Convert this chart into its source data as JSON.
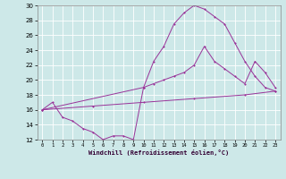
{
  "xlabel": "Windchill (Refroidissement éolien,°C)",
  "bg_color": "#cde8e8",
  "line_color": "#993399",
  "xlim": [
    -0.5,
    23.5
  ],
  "ylim": [
    12,
    30
  ],
  "xticks": [
    0,
    1,
    2,
    3,
    4,
    5,
    6,
    7,
    8,
    9,
    10,
    11,
    12,
    13,
    14,
    15,
    16,
    17,
    18,
    19,
    20,
    21,
    22,
    23
  ],
  "yticks": [
    12,
    14,
    16,
    18,
    20,
    22,
    24,
    26,
    28,
    30
  ],
  "line1_x": [
    0,
    1,
    2,
    3,
    4,
    5,
    6,
    7,
    8,
    9,
    10,
    11,
    12,
    13,
    14,
    15,
    16,
    17,
    18,
    19,
    20,
    21,
    22,
    23
  ],
  "line1_y": [
    16.0,
    17.0,
    15.0,
    14.5,
    13.5,
    13.0,
    12.0,
    12.5,
    12.5,
    12.0,
    19.0,
    22.5,
    24.5,
    27.5,
    29.0,
    30.0,
    29.5,
    28.5,
    27.5,
    25.0,
    22.5,
    20.5,
    19.0,
    18.5
  ],
  "line2_x": [
    0,
    10,
    11,
    12,
    13,
    14,
    15,
    16,
    17,
    18,
    19,
    20,
    21,
    22,
    23
  ],
  "line2_y": [
    16.0,
    19.0,
    19.5,
    20.0,
    20.5,
    21.0,
    22.0,
    24.5,
    22.5,
    21.5,
    20.5,
    19.5,
    22.5,
    21.0,
    19.0
  ],
  "line3_x": [
    0,
    5,
    10,
    15,
    20,
    23
  ],
  "line3_y": [
    16.0,
    16.5,
    17.0,
    17.5,
    18.0,
    18.5
  ]
}
